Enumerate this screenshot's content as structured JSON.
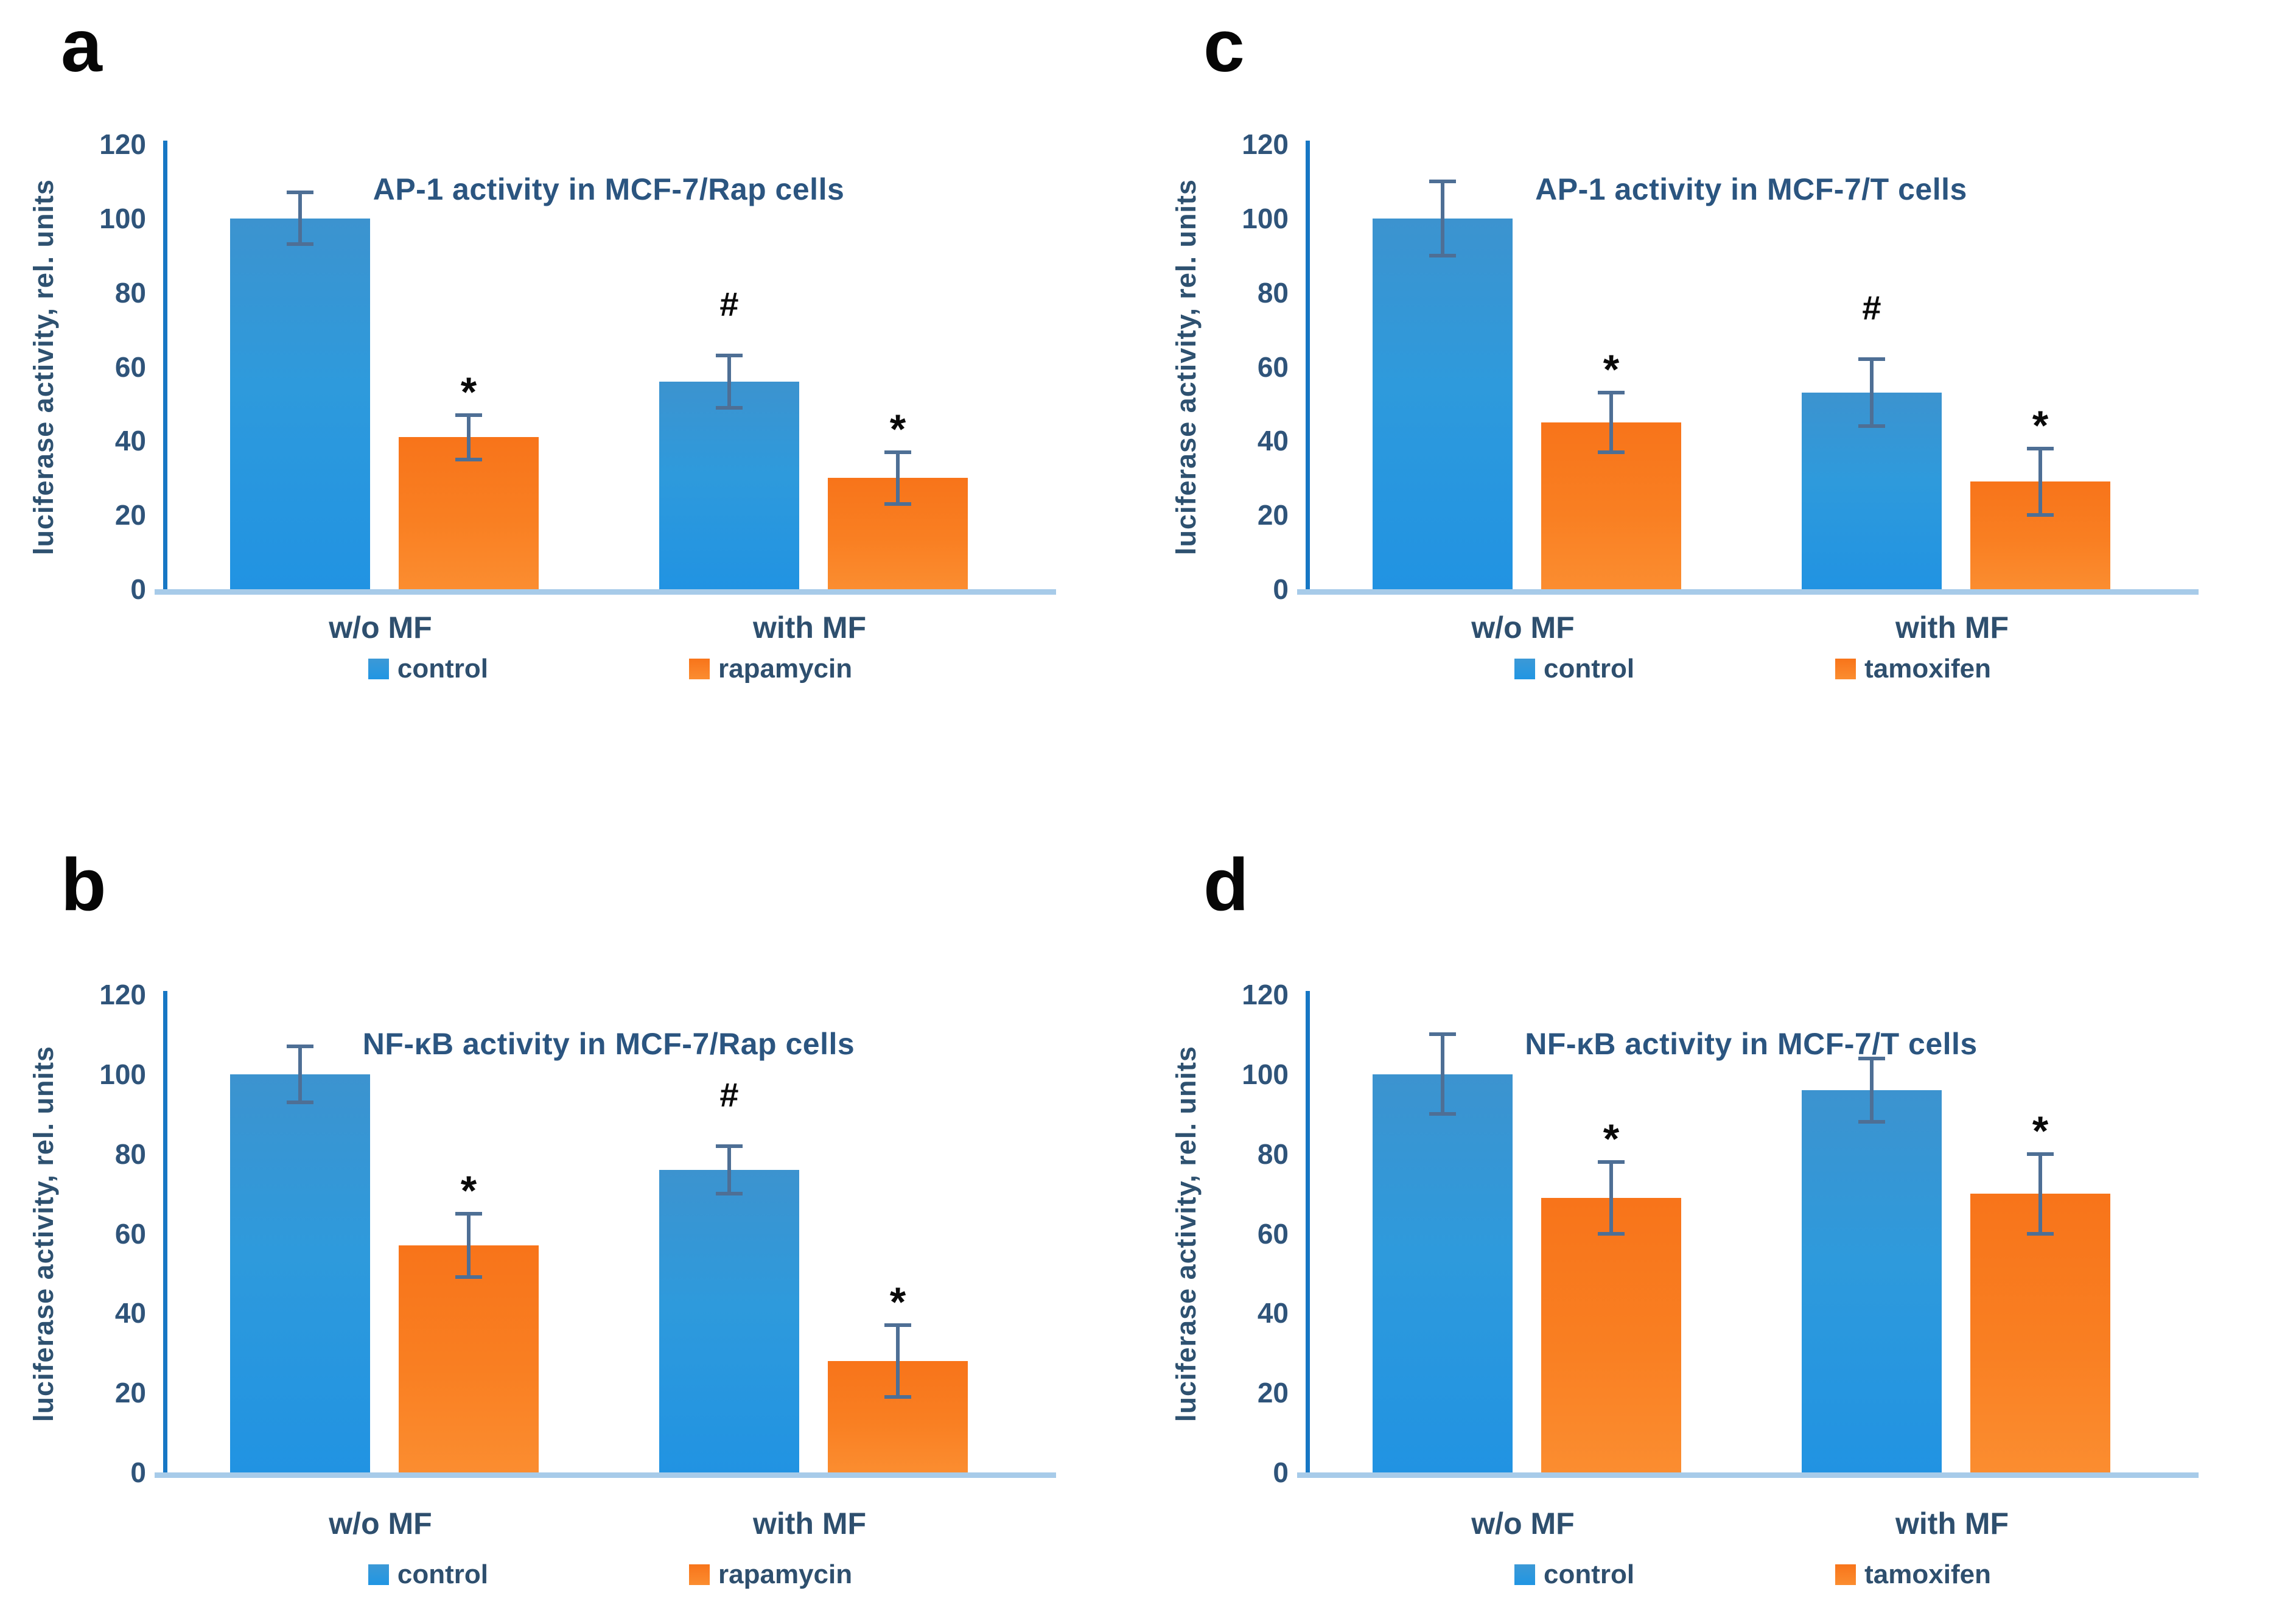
{
  "colors": {
    "control_bar": "#2D9CE3",
    "treatment_bar": "#F97A1C",
    "error_bar": "#4E6F95",
    "y_axis_line": "#1777C4",
    "x_baseline": "#A7CBE9",
    "tick_text": "#2F547A",
    "title_text": "#2B5580",
    "label_text": "#2E4F6E",
    "panel_letter": "#060606"
  },
  "chart_data": [
    {
      "panel": "a",
      "type": "bar",
      "title": "AP-1 activity in MCF-7/Rap cells",
      "ylabel": "luciferase activity, rel. units",
      "xlabel": "",
      "ylim": [
        0,
        120
      ],
      "yticks": [
        0,
        20,
        40,
        60,
        80,
        100,
        120
      ],
      "grid": false,
      "legend_position": "bottom",
      "categories": [
        "w/o MF",
        "with MF"
      ],
      "series": [
        {
          "name": "control",
          "color": "#2D9CE3",
          "values": [
            100,
            56
          ],
          "errors": [
            7,
            7
          ],
          "annotations": [
            "",
            "#"
          ]
        },
        {
          "name": "rapamycin",
          "color": "#F97A1C",
          "values": [
            41,
            30
          ],
          "errors": [
            6,
            7
          ],
          "annotations": [
            "*",
            "*"
          ]
        }
      ]
    },
    {
      "panel": "b",
      "type": "bar",
      "title": "NF-κB activity in MCF-7/Rap cells",
      "ylabel": "luciferase activity, rel. units",
      "xlabel": "",
      "ylim": [
        0,
        120
      ],
      "yticks": [
        0,
        20,
        40,
        60,
        80,
        100,
        120
      ],
      "grid": false,
      "legend_position": "bottom",
      "categories": [
        "w/o MF",
        "with MF"
      ],
      "series": [
        {
          "name": "control",
          "color": "#2D9CE3",
          "values": [
            100,
            76
          ],
          "errors": [
            7,
            6
          ],
          "annotations": [
            "",
            "#"
          ]
        },
        {
          "name": "rapamycin",
          "color": "#F97A1C",
          "values": [
            57,
            28
          ],
          "errors": [
            8,
            9
          ],
          "annotations": [
            "*",
            "*"
          ]
        }
      ]
    },
    {
      "panel": "c",
      "type": "bar",
      "title": "AP-1 activity in MCF-7/T cells",
      "ylabel": "luciferase activity, rel. units",
      "xlabel": "",
      "ylim": [
        0,
        120
      ],
      "yticks": [
        0,
        20,
        40,
        60,
        80,
        100,
        120
      ],
      "grid": false,
      "legend_position": "bottom",
      "categories": [
        "w/o MF",
        "with MF"
      ],
      "series": [
        {
          "name": "control",
          "color": "#2D9CE3",
          "values": [
            100,
            53
          ],
          "errors": [
            10,
            9
          ],
          "annotations": [
            "",
            "#"
          ]
        },
        {
          "name": "tamoxifen",
          "color": "#F97A1C",
          "values": [
            45,
            29
          ],
          "errors": [
            8,
            9
          ],
          "annotations": [
            "*",
            "*"
          ]
        }
      ]
    },
    {
      "panel": "d",
      "type": "bar",
      "title": "NF-κB activity in MCF-7/T cells",
      "ylabel": "luciferase activity, rel. units",
      "xlabel": "",
      "ylim": [
        0,
        120
      ],
      "yticks": [
        0,
        20,
        40,
        60,
        80,
        100,
        120
      ],
      "grid": false,
      "legend_position": "bottom",
      "categories": [
        "w/o MF",
        "with MF"
      ],
      "series": [
        {
          "name": "control",
          "color": "#2D9CE3",
          "values": [
            100,
            96
          ],
          "errors": [
            10,
            8
          ],
          "annotations": [
            "",
            ""
          ]
        },
        {
          "name": "tamoxifen",
          "color": "#F97A1C",
          "values": [
            69,
            70
          ],
          "errors": [
            9,
            10
          ],
          "annotations": [
            "*",
            "*"
          ]
        }
      ]
    }
  ]
}
